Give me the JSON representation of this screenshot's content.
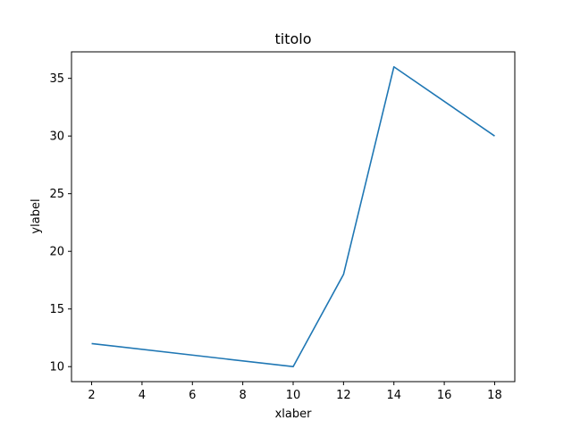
{
  "chart_data": {
    "type": "line",
    "title": "titolo",
    "xlabel": "xlaber",
    "ylabel": "ylabel",
    "x": [
      2,
      10,
      12,
      14,
      18
    ],
    "series": [
      {
        "values": [
          12,
          10,
          18,
          36,
          30
        ],
        "color": "#1f77b4"
      }
    ],
    "xlim": [
      1.2,
      18.8
    ],
    "ylim": [
      8.7,
      37.3
    ],
    "xticks": [
      2,
      4,
      6,
      8,
      10,
      12,
      14,
      16,
      18
    ],
    "yticks": [
      10,
      15,
      20,
      25,
      30,
      35
    ],
    "grid": false,
    "legend": false
  }
}
